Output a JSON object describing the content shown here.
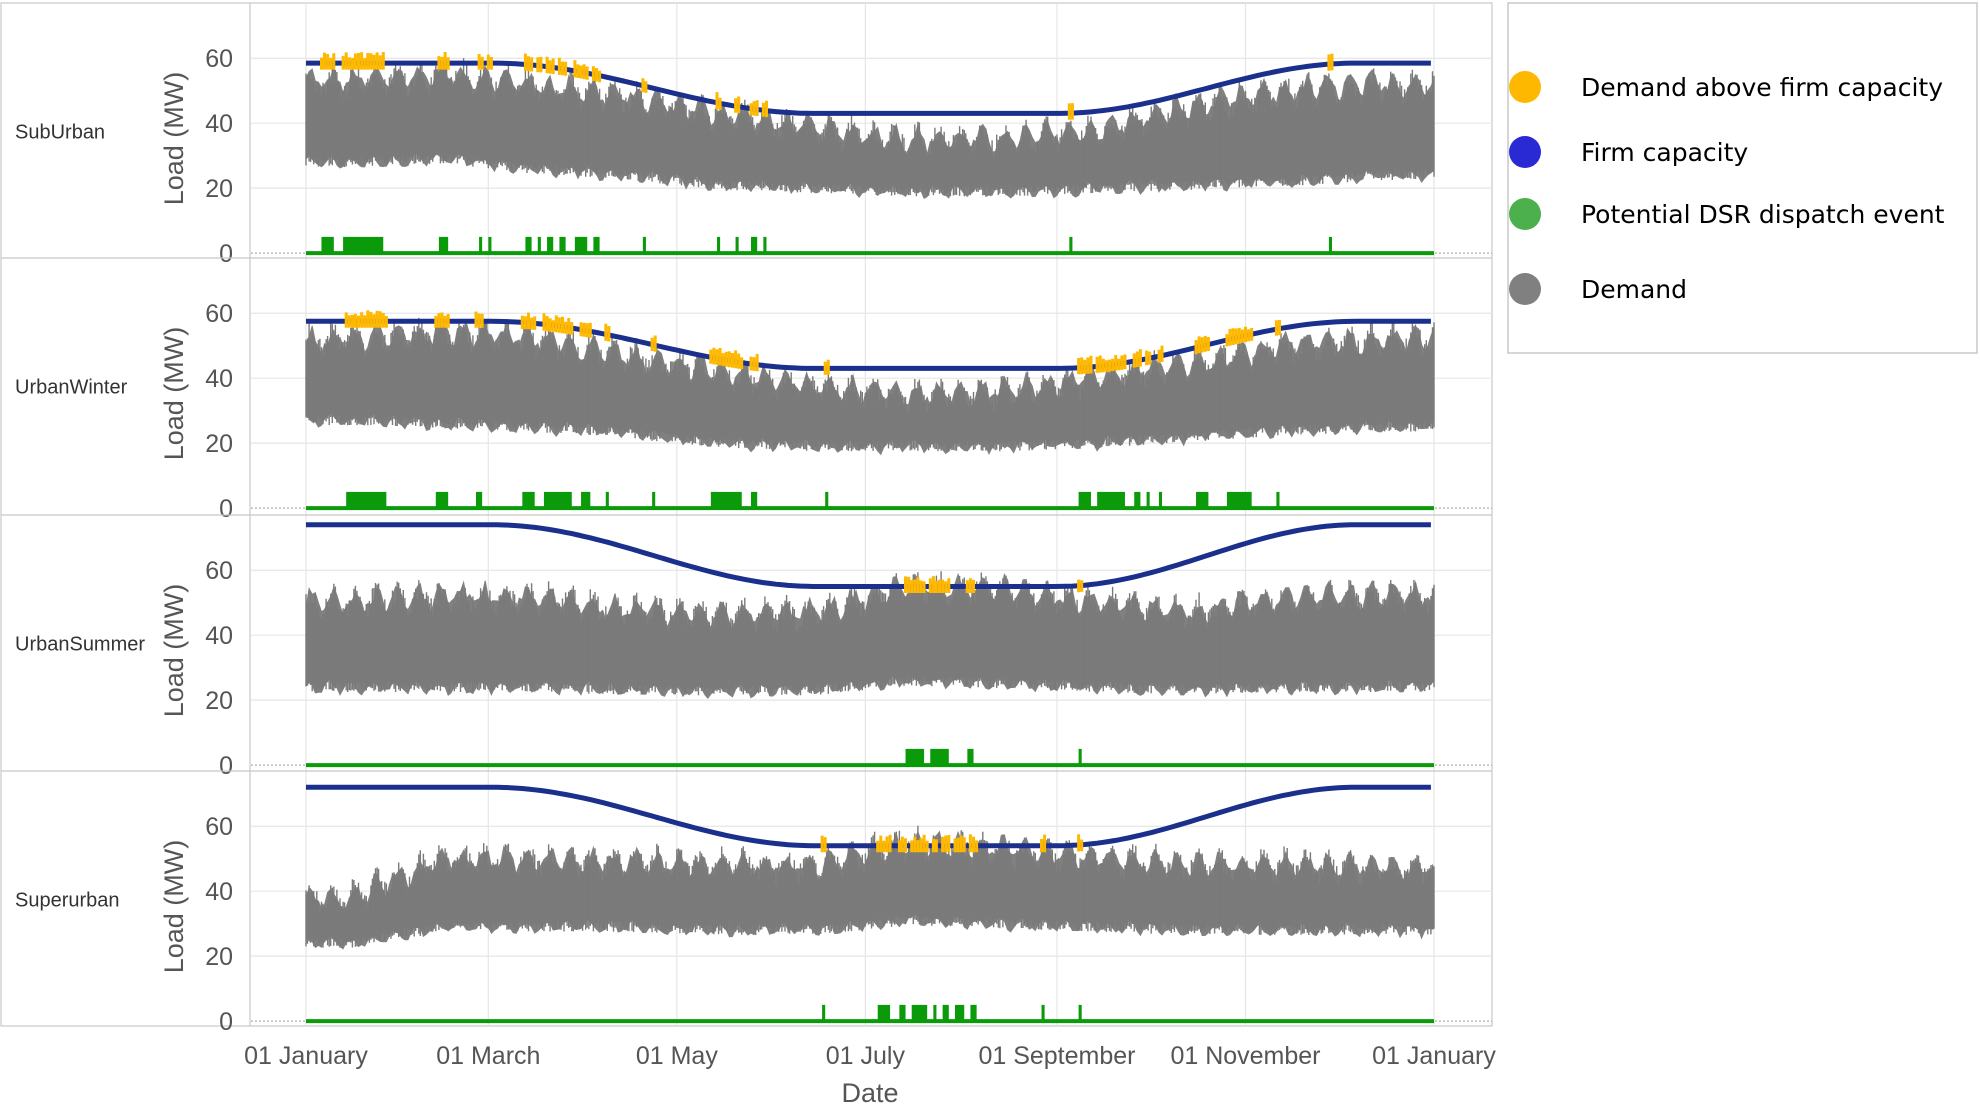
{
  "chart_data": {
    "type": "line",
    "xlabel": "Date",
    "ylabel": "Load (MW)",
    "x_ticks": [
      "01 January",
      "01 March",
      "01 May",
      "01 July",
      "01 September",
      "01 November",
      "01 January"
    ],
    "legend": {
      "placement": "right",
      "entries": [
        {
          "label": "Demand above firm capacity",
          "color": "#FFB800"
        },
        {
          "label": "Firm capacity",
          "color": "#2A2AD4"
        },
        {
          "label": "Potential DSR dispatch event",
          "color": "#4CB04C"
        },
        {
          "label": "Demand",
          "color": "#808080"
        }
      ]
    },
    "colors": {
      "demand": "#808080",
      "firm": "#1B2F8C",
      "above": "#FFB800",
      "dsr": "#0A9A0A",
      "grid": "#E6E6E6",
      "border": "#C8C8C8"
    },
    "panels": [
      {
        "label": "SubUrban",
        "yticks": [
          0,
          20,
          40,
          60
        ],
        "ylim": [
          -1.5,
          77
        ],
        "firm_capacity": {
          "max": 58.5,
          "min": 43
        },
        "demand_band": [
          {
            "month": 1,
            "low": 28,
            "high": 53
          },
          {
            "month": 2,
            "low": 29,
            "high": 55
          },
          {
            "month": 3,
            "low": 26,
            "high": 52
          },
          {
            "month": 4,
            "low": 24,
            "high": 48
          },
          {
            "month": 5,
            "low": 21,
            "high": 43
          },
          {
            "month": 6,
            "low": 20,
            "high": 38
          },
          {
            "month": 7,
            "low": 19,
            "high": 35
          },
          {
            "month": 8,
            "low": 19,
            "high": 35
          },
          {
            "month": 9,
            "low": 20,
            "high": 38
          },
          {
            "month": 10,
            "low": 21,
            "high": 45
          },
          {
            "month": 11,
            "low": 22,
            "high": 50
          },
          {
            "month": 12,
            "low": 24,
            "high": 52
          }
        ],
        "dsr_events": [
          {
            "start": "01-06",
            "end": "01-10"
          },
          {
            "start": "01-13",
            "end": "01-26"
          },
          {
            "start": "02-13",
            "end": "02-16"
          },
          {
            "start": "02-26",
            "end": "02-27"
          },
          {
            "start": "03-01",
            "end": "03-02"
          },
          {
            "start": "03-13",
            "end": "03-15"
          },
          {
            "start": "03-17",
            "end": "03-18"
          },
          {
            "start": "03-20",
            "end": "03-22"
          },
          {
            "start": "03-24",
            "end": "03-26"
          },
          {
            "start": "03-29",
            "end": "04-02"
          },
          {
            "start": "04-04",
            "end": "04-06"
          },
          {
            "start": "04-20",
            "end": "04-21"
          },
          {
            "start": "05-14",
            "end": "05-15"
          },
          {
            "start": "05-20",
            "end": "05-21"
          },
          {
            "start": "05-25",
            "end": "05-27"
          },
          {
            "start": "05-29",
            "end": "05-30"
          },
          {
            "start": "09-05",
            "end": "09-06"
          },
          {
            "start": "11-28",
            "end": "11-29"
          }
        ]
      },
      {
        "label": "UrbanWinter",
        "yticks": [
          0,
          20,
          40,
          60
        ],
        "ylim": [
          -1.5,
          77
        ],
        "firm_capacity": {
          "max": 57.5,
          "min": 43
        },
        "demand_band": [
          {
            "month": 1,
            "low": 27,
            "high": 52
          },
          {
            "month": 2,
            "low": 26,
            "high": 54
          },
          {
            "month": 3,
            "low": 25,
            "high": 52
          },
          {
            "month": 4,
            "low": 23,
            "high": 47
          },
          {
            "month": 5,
            "low": 20,
            "high": 42
          },
          {
            "month": 6,
            "low": 19,
            "high": 37
          },
          {
            "month": 7,
            "low": 19,
            "high": 35
          },
          {
            "month": 8,
            "low": 19,
            "high": 36
          },
          {
            "month": 9,
            "low": 20,
            "high": 40
          },
          {
            "month": 10,
            "low": 22,
            "high": 45
          },
          {
            "month": 11,
            "low": 24,
            "high": 50
          },
          {
            "month": 12,
            "low": 25,
            "high": 52
          }
        ],
        "dsr_events": [
          {
            "start": "01-14",
            "end": "01-27"
          },
          {
            "start": "02-12",
            "end": "02-16"
          },
          {
            "start": "02-25",
            "end": "02-27"
          },
          {
            "start": "03-12",
            "end": "03-16"
          },
          {
            "start": "03-19",
            "end": "03-28"
          },
          {
            "start": "03-31",
            "end": "04-03"
          },
          {
            "start": "04-08",
            "end": "04-09"
          },
          {
            "start": "04-23",
            "end": "04-24"
          },
          {
            "start": "05-12",
            "end": "05-22"
          },
          {
            "start": "05-25",
            "end": "05-27"
          },
          {
            "start": "06-18",
            "end": "06-19"
          },
          {
            "start": "09-08",
            "end": "09-12"
          },
          {
            "start": "09-14",
            "end": "09-23"
          },
          {
            "start": "09-26",
            "end": "09-28"
          },
          {
            "start": "09-30",
            "end": "10-01"
          },
          {
            "start": "10-04",
            "end": "10-05"
          },
          {
            "start": "10-16",
            "end": "10-20"
          },
          {
            "start": "10-26",
            "end": "11-03"
          },
          {
            "start": "11-11",
            "end": "11-12"
          }
        ]
      },
      {
        "label": "UrbanSummer",
        "yticks": [
          0,
          20,
          40,
          60
        ],
        "ylim": [
          -1.5,
          77
        ],
        "firm_capacity": {
          "max": 74,
          "min": 55
        },
        "demand_band": [
          {
            "month": 1,
            "low": 24,
            "high": 50
          },
          {
            "month": 2,
            "low": 24,
            "high": 52
          },
          {
            "month": 3,
            "low": 24,
            "high": 52
          },
          {
            "month": 4,
            "low": 23,
            "high": 48
          },
          {
            "month": 5,
            "low": 23,
            "high": 46
          },
          {
            "month": 6,
            "low": 23,
            "high": 47
          },
          {
            "month": 7,
            "low": 26,
            "high": 55
          },
          {
            "month": 8,
            "low": 25,
            "high": 54
          },
          {
            "month": 9,
            "low": 24,
            "high": 50
          },
          {
            "month": 10,
            "low": 23,
            "high": 47
          },
          {
            "month": 11,
            "low": 24,
            "high": 52
          },
          {
            "month": 12,
            "low": 24,
            "high": 52
          }
        ],
        "dsr_events": [
          {
            "start": "07-14",
            "end": "07-20"
          },
          {
            "start": "07-22",
            "end": "07-28"
          },
          {
            "start": "08-03",
            "end": "08-05"
          },
          {
            "start": "09-08",
            "end": "09-09"
          }
        ]
      },
      {
        "label": "Superurban",
        "yticks": [
          0,
          20,
          40,
          60
        ],
        "ylim": [
          -1.5,
          77
        ],
        "firm_capacity": {
          "max": 72,
          "min": 54
        },
        "demand_band": [
          {
            "month": 1,
            "low": 24,
            "high": 38
          },
          {
            "month": 2,
            "low": 29,
            "high": 50
          },
          {
            "month": 3,
            "low": 29,
            "high": 50
          },
          {
            "month": 4,
            "low": 29,
            "high": 49
          },
          {
            "month": 5,
            "low": 28,
            "high": 48
          },
          {
            "month": 6,
            "low": 28,
            "high": 48
          },
          {
            "month": 7,
            "low": 31,
            "high": 55
          },
          {
            "month": 8,
            "low": 30,
            "high": 53
          },
          {
            "month": 9,
            "low": 29,
            "high": 50
          },
          {
            "month": 10,
            "low": 28,
            "high": 48
          },
          {
            "month": 11,
            "low": 28,
            "high": 48
          },
          {
            "month": 12,
            "low": 28,
            "high": 47
          }
        ],
        "dsr_events": [
          {
            "start": "06-17",
            "end": "06-18"
          },
          {
            "start": "07-05",
            "end": "07-09"
          },
          {
            "start": "07-12",
            "end": "07-14"
          },
          {
            "start": "07-16",
            "end": "07-21"
          },
          {
            "start": "07-23",
            "end": "07-24"
          },
          {
            "start": "07-26",
            "end": "07-28"
          },
          {
            "start": "07-30",
            "end": "08-02"
          },
          {
            "start": "08-04",
            "end": "08-06"
          },
          {
            "start": "08-27",
            "end": "08-28"
          },
          {
            "start": "09-08",
            "end": "09-09"
          }
        ]
      }
    ]
  }
}
